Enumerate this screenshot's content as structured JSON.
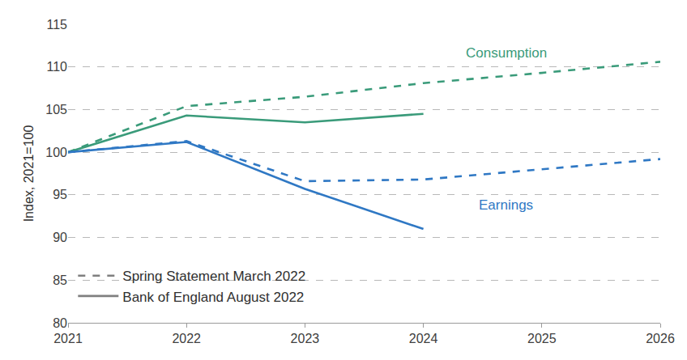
{
  "chart_data": {
    "type": "line",
    "y_label": "Index, 2021=100",
    "x": [
      2021,
      2022,
      2023,
      2024,
      2025,
      2026
    ],
    "xlim": [
      2021,
      2026
    ],
    "xticks": [
      2021,
      2022,
      2023,
      2024,
      2025,
      2026
    ],
    "ylim": [
      80,
      115
    ],
    "yticks": [
      80,
      85,
      90,
      95,
      100,
      105,
      110,
      115
    ],
    "grid": true,
    "legend": "lower left",
    "series": [
      {
        "name": "Consumption",
        "source": "Spring Statement March 2022",
        "color": "#3a9b7a",
        "line_style": "dashed",
        "values": [
          100,
          105.4,
          106.5,
          108.1,
          109.3,
          110.6
        ]
      },
      {
        "name": "Consumption",
        "source": "Bank of England August 2022",
        "color": "#3a9b7a",
        "line_style": "solid",
        "values": [
          100,
          104.3,
          103.5,
          104.5,
          null,
          null
        ]
      },
      {
        "name": "Earnings",
        "source": "Spring Statement March 2022",
        "color": "#2f78c4",
        "line_style": "dashed",
        "values": [
          100,
          101.3,
          96.6,
          96.8,
          98.0,
          99.2
        ]
      },
      {
        "name": "Earnings",
        "source": "Bank of England August 2022",
        "color": "#2f78c4",
        "line_style": "solid",
        "values": [
          100,
          101.2,
          95.7,
          91.0,
          null,
          null
        ]
      }
    ]
  }
}
